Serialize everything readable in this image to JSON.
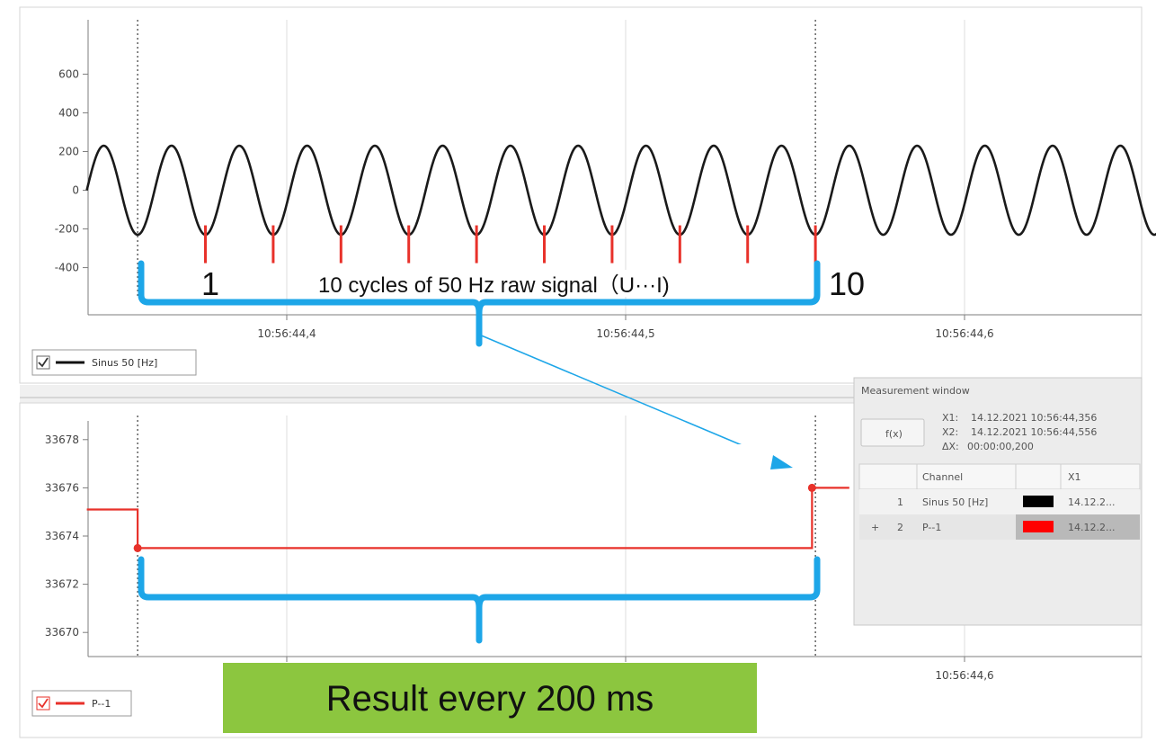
{
  "colors": {
    "signal": "#1a1a1a",
    "result": "#e8312a",
    "marker": "#e8312a",
    "bracket": "#1da6e8",
    "banner": "#8cc63f",
    "grid": "#dedede",
    "cursor": "#555555",
    "panel_bg": "#ececec",
    "selected_row": "#b9b9b9"
  },
  "annotations": {
    "cycle_start": "1",
    "cycle_end": "10",
    "cycles_label": "10 cycles of 50 Hz raw signal（U···I)",
    "banner": "Result every 200 ms"
  },
  "measurement_window": {
    "title": "Measurement window",
    "fx_label": "f(x)",
    "x1_key": "X1:",
    "x1_value": "14.12.2021 10:56:44,356",
    "x2_key": "X2:",
    "x2_value": "14.12.2021 10:56:44,556",
    "dx_key": "ΔX:",
    "dx_value": "00:00:00,200",
    "columns": [
      "Channel",
      "X1"
    ],
    "rows": [
      {
        "marker": "",
        "num": "1",
        "channel": "Sinus 50 [Hz]",
        "color": "#000000",
        "x1": "14.12.2...",
        "selected": false
      },
      {
        "marker": "+",
        "num": "2",
        "channel": "P--1",
        "color": "#ff0000",
        "x1": "14.12.2...",
        "selected": true
      }
    ]
  },
  "chart_data": [
    {
      "type": "line",
      "title": "",
      "xlabel": "",
      "ylabel": "",
      "x_ticks": [
        "10:56:44,4",
        "10:56:44,5",
        "10:56:44,6"
      ],
      "ylim": [
        -560,
        760
      ],
      "y_ticks": [
        -400,
        -200,
        0,
        200,
        400,
        600
      ],
      "grid": true,
      "legend": {
        "position": "bottom-left",
        "checked": true
      },
      "cursors": [
        "10:56:44,356",
        "10:56:44,556"
      ],
      "series": [
        {
          "name": "Sinus 50 [Hz]",
          "frequency_hz": 50,
          "amplitude": 230,
          "x_start": "10:56:44,341",
          "x_end": "10:56:44,661"
        }
      ],
      "cycle_markers": {
        "count": 10,
        "y": -200
      }
    },
    {
      "type": "line",
      "title": "",
      "xlabel": "",
      "ylabel": "",
      "x_ticks": [
        "",
        "",
        "10:56:44,6"
      ],
      "ylim": [
        33669,
        33679
      ],
      "y_ticks": [
        33670,
        33672,
        33674,
        33676,
        33678
      ],
      "grid": true,
      "legend": {
        "position": "bottom-left",
        "checked": true
      },
      "cursors": [
        "10:56:44,356",
        "10:56:44,556"
      ],
      "series": [
        {
          "name": "P--1",
          "step": true,
          "points": [
            {
              "t": "10:56:44,341",
              "y": 33675.1
            },
            {
              "t": "10:56:44,356",
              "y": 33673.5
            },
            {
              "t": "10:56:44,555",
              "y": 33676.0
            }
          ],
          "x_end": "10:56:44,566"
        }
      ]
    }
  ]
}
